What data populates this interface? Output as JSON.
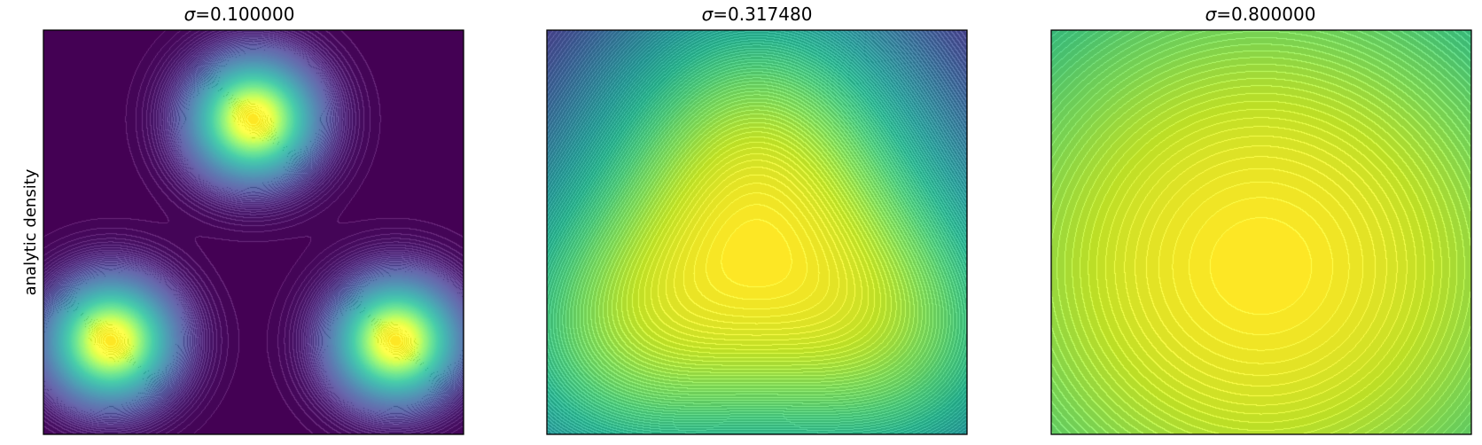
{
  "figure": {
    "ylabel": "analytic density"
  },
  "colors": {
    "viridis_low": "#440154",
    "viridis_mid": "#21918c",
    "viridis_high": "#fde725",
    "contour_line": "#ffffff"
  },
  "chart_data": [
    {
      "type": "heatmap",
      "title_symbol": "σ",
      "title_value": "=0.100000",
      "sigma": 0.1,
      "colormap": "viridis",
      "filled_contours": true,
      "axes_ticks": false,
      "grid": false,
      "legend": "none",
      "centers": [
        [
          0.0,
          0.78
        ],
        [
          -0.34,
          0.23
        ],
        [
          0.34,
          0.23
        ]
      ],
      "peaks": [
        {
          "x": 0.0,
          "y": 0.78
        },
        {
          "x": -0.34,
          "y": 0.23
        },
        {
          "x": 0.34,
          "y": 0.23
        }
      ]
    },
    {
      "type": "heatmap",
      "title_symbol": "σ",
      "title_value": "=0.317480",
      "sigma": 0.31748,
      "colormap": "viridis",
      "filled_contours": true,
      "axes_ticks": false,
      "grid": false,
      "legend": "none",
      "centers": [
        [
          0.0,
          0.78
        ],
        [
          -0.34,
          0.23
        ],
        [
          0.34,
          0.23
        ]
      ],
      "peaks": [
        {
          "x": 0.0,
          "y": 0.42
        }
      ]
    },
    {
      "type": "heatmap",
      "title_symbol": "σ",
      "title_value": "=0.800000",
      "sigma": 0.8,
      "colormap": "viridis",
      "filled_contours": true,
      "axes_ticks": false,
      "grid": false,
      "legend": "none",
      "centers": [
        [
          0.0,
          0.78
        ],
        [
          -0.34,
          0.23
        ],
        [
          0.34,
          0.23
        ]
      ],
      "peaks": [
        {
          "x": 0.0,
          "y": 0.44
        }
      ]
    }
  ]
}
